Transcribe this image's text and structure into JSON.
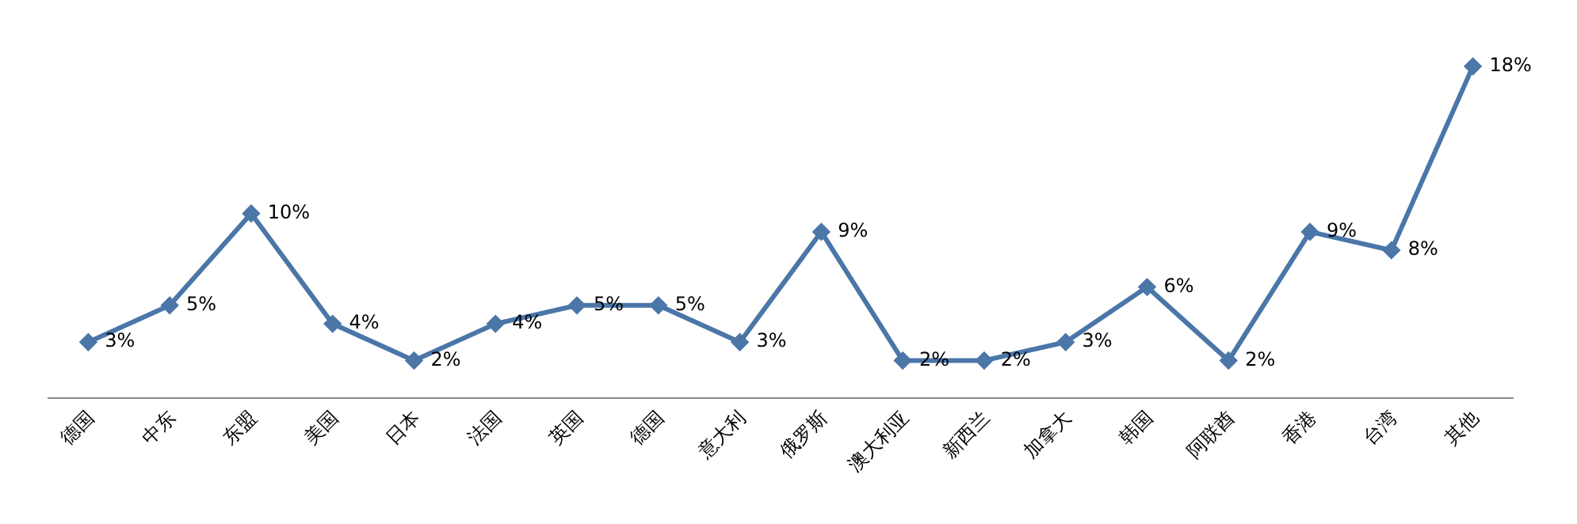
{
  "chart_data": {
    "type": "line",
    "categories": [
      "德国",
      "中东",
      "东盟",
      "美国",
      "日本",
      "法国",
      "英国",
      "德国",
      "意大利",
      "俄罗斯",
      "澳大利亚",
      "新西兰",
      "加拿大",
      "韩国",
      "阿联酋",
      "香港",
      "台湾",
      "其他"
    ],
    "values": [
      3,
      5,
      10,
      4,
      2,
      4,
      5,
      5,
      3,
      9,
      2,
      2,
      3,
      6,
      2,
      9,
      8,
      18
    ],
    "value_labels": [
      "3%",
      "5%",
      "10%",
      "4%",
      "2%",
      "4%",
      "5%",
      "5%",
      "3%",
      "9%",
      "2%",
      "2%",
      "3%",
      "6%",
      "2%",
      "9%",
      "8%",
      "18%"
    ],
    "color": "#4a76a8",
    "marker": "diamond",
    "line_style": "solid",
    "legend": false
  }
}
